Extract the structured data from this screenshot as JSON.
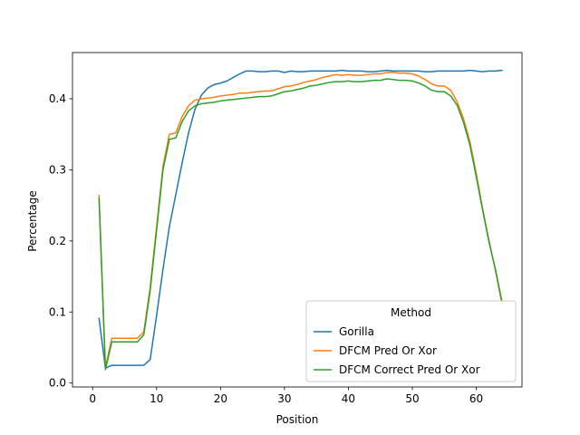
{
  "chart_data": {
    "type": "line",
    "xlabel": "Position",
    "ylabel": "Percentage",
    "xlim": [
      -3.15,
      67.15
    ],
    "ylim": [
      -0.0055,
      0.465
    ],
    "xticks": [
      0,
      10,
      20,
      30,
      40,
      50,
      60
    ],
    "yticks": [
      0.0,
      0.1,
      0.2,
      0.3,
      0.4
    ],
    "xtick_labels": [
      "0",
      "10",
      "20",
      "30",
      "40",
      "50",
      "60"
    ],
    "ytick_labels": [
      "0.0",
      "0.1",
      "0.2",
      "0.3",
      "0.4"
    ],
    "grid": false,
    "legend": {
      "title": "Method",
      "position": "lower-right"
    },
    "series": [
      {
        "name": "Gorilla",
        "color": "#1f77b4",
        "x": [
          1,
          2,
          3,
          4,
          5,
          6,
          7,
          8,
          9,
          10,
          11,
          12,
          13,
          14,
          15,
          16,
          17,
          18,
          19,
          20,
          21,
          22,
          23,
          24,
          25,
          26,
          27,
          28,
          29,
          30,
          31,
          32,
          33,
          34,
          35,
          36,
          37,
          38,
          39,
          40,
          41,
          42,
          43,
          44,
          45,
          46,
          47,
          48,
          49,
          50,
          51,
          52,
          53,
          54,
          55,
          56,
          57,
          58,
          59,
          60,
          61,
          62,
          63,
          64
        ],
        "y": [
          0.091,
          0.021,
          0.025,
          0.025,
          0.025,
          0.025,
          0.025,
          0.025,
          0.033,
          0.095,
          0.16,
          0.22,
          0.265,
          0.31,
          0.352,
          0.385,
          0.405,
          0.415,
          0.42,
          0.422,
          0.425,
          0.43,
          0.435,
          0.439,
          0.439,
          0.438,
          0.438,
          0.439,
          0.439,
          0.437,
          0.439,
          0.438,
          0.438,
          0.439,
          0.439,
          0.439,
          0.439,
          0.439,
          0.44,
          0.439,
          0.439,
          0.439,
          0.438,
          0.438,
          0.439,
          0.44,
          0.439,
          0.439,
          0.439,
          0.439,
          0.439,
          0.438,
          0.438,
          0.439,
          0.439,
          0.439,
          0.439,
          0.439,
          0.44,
          0.439,
          0.438,
          0.439,
          0.439,
          0.44
        ]
      },
      {
        "name": "DFCM Pred Or Xor",
        "color": "#ff7f0e",
        "x": [
          1,
          2,
          3,
          4,
          5,
          6,
          7,
          8,
          9,
          10,
          11,
          12,
          13,
          14,
          15,
          16,
          17,
          18,
          19,
          20,
          21,
          22,
          23,
          24,
          25,
          26,
          27,
          28,
          29,
          30,
          31,
          32,
          33,
          34,
          35,
          36,
          37,
          38,
          39,
          40,
          41,
          42,
          43,
          44,
          45,
          46,
          47,
          48,
          49,
          50,
          51,
          52,
          53,
          54,
          55,
          56,
          57,
          58,
          59,
          60,
          61,
          62,
          63,
          64
        ],
        "y": [
          0.264,
          0.022,
          0.063,
          0.063,
          0.063,
          0.063,
          0.063,
          0.072,
          0.135,
          0.22,
          0.305,
          0.35,
          0.352,
          0.375,
          0.39,
          0.398,
          0.4,
          0.401,
          0.402,
          0.404,
          0.405,
          0.406,
          0.408,
          0.408,
          0.409,
          0.41,
          0.411,
          0.411,
          0.414,
          0.417,
          0.418,
          0.42,
          0.423,
          0.425,
          0.427,
          0.43,
          0.432,
          0.434,
          0.433,
          0.434,
          0.433,
          0.433,
          0.434,
          0.435,
          0.435,
          0.437,
          0.437,
          0.436,
          0.436,
          0.435,
          0.432,
          0.427,
          0.421,
          0.418,
          0.418,
          0.412,
          0.396,
          0.372,
          0.34,
          0.295,
          0.245,
          0.2,
          0.158,
          0.112
        ]
      },
      {
        "name": "DFCM Correct Pred Or Xor",
        "color": "#2ca02c",
        "x": [
          1,
          2,
          3,
          4,
          5,
          6,
          7,
          8,
          9,
          10,
          11,
          12,
          13,
          14,
          15,
          16,
          17,
          18,
          19,
          20,
          21,
          22,
          23,
          24,
          25,
          26,
          27,
          28,
          29,
          30,
          31,
          32,
          33,
          34,
          35,
          36,
          37,
          38,
          39,
          40,
          41,
          42,
          43,
          44,
          45,
          46,
          47,
          48,
          49,
          50,
          51,
          52,
          53,
          54,
          55,
          56,
          57,
          58,
          59,
          60,
          61,
          62,
          63,
          64
        ],
        "y": [
          0.26,
          0.019,
          0.058,
          0.058,
          0.058,
          0.058,
          0.058,
          0.068,
          0.13,
          0.215,
          0.3,
          0.343,
          0.345,
          0.368,
          0.383,
          0.39,
          0.393,
          0.394,
          0.395,
          0.397,
          0.398,
          0.399,
          0.4,
          0.401,
          0.402,
          0.403,
          0.403,
          0.404,
          0.407,
          0.41,
          0.411,
          0.413,
          0.415,
          0.418,
          0.419,
          0.421,
          0.423,
          0.424,
          0.424,
          0.425,
          0.424,
          0.424,
          0.425,
          0.426,
          0.426,
          0.428,
          0.427,
          0.426,
          0.426,
          0.425,
          0.422,
          0.418,
          0.412,
          0.41,
          0.41,
          0.404,
          0.391,
          0.367,
          0.335,
          0.29,
          0.243,
          0.198,
          0.16,
          0.115
        ]
      }
    ]
  }
}
